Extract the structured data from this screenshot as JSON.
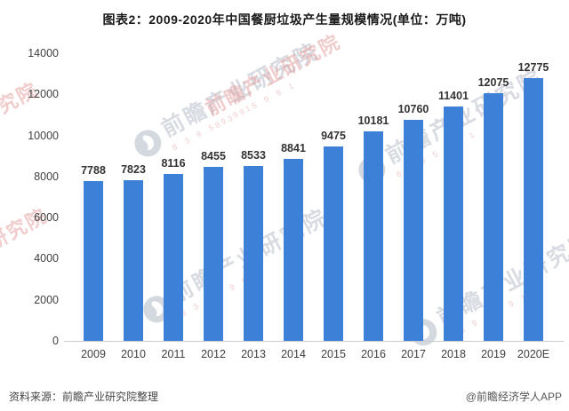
{
  "title": "图表2：2009-2020年中国餐厨垃圾产生量规模情况(单位：万吨)",
  "chart_data": {
    "type": "bar",
    "categories": [
      "2009",
      "2010",
      "2011",
      "2012",
      "2013",
      "2014",
      "2015",
      "2016",
      "2017",
      "2018",
      "2019",
      "2020E"
    ],
    "values": [
      7788,
      7823,
      8116,
      8455,
      8533,
      8841,
      9475,
      10181,
      10760,
      11401,
      12075,
      12775
    ],
    "title": "图表2：2009-2020年中国餐厨垃圾产生量规模情况(单位：万吨)",
    "unit": "万吨",
    "xlabel": "",
    "ylabel": "",
    "ylim": [
      0,
      14000
    ],
    "yticks": [
      0,
      2000,
      4000,
      6000,
      8000,
      10000,
      12000,
      14000
    ],
    "grid": false,
    "legend": "none",
    "bar_color": "#3D80D8",
    "value_label_color": "#333333",
    "axis_label_color": "#404040"
  },
  "footer": {
    "source": "资料来源：前瞻产业研究院整理",
    "credit": "@前瞻经济学人APP"
  },
  "watermark": {
    "text": "前瞻产业研究院",
    "digits": "8 3 9 5 9 9 1",
    "gray_color": "rgba(158,168,182,0.40)",
    "red_color": "rgba(224,148,148,0.48)"
  }
}
